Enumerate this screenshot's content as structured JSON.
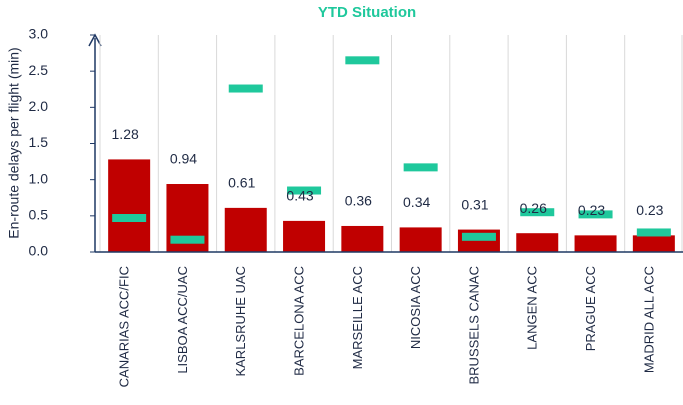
{
  "chart_data": {
    "type": "bar",
    "title": "YTD Situation",
    "ylabel": "En-route delays per flight (min)",
    "categories": [
      "CANARIAS ACC/FIC",
      "LISBOA ACC/UAC",
      "KARLSRUHE UAC",
      "BARCELONA ACC",
      "MARSEILLE ACC",
      "NICOSIA ACC",
      "BRUSSELS CANAC",
      "LANGEN ACC",
      "PRAGUE ACC",
      "MADRID ALL ACC"
    ],
    "series": [
      {
        "color": "#c00000",
        "marker": "bar",
        "data_labels": true,
        "values": [
          1.28,
          0.94,
          0.61,
          0.43,
          0.36,
          0.34,
          0.31,
          0.26,
          0.23,
          0.23
        ]
      },
      {
        "color": "#1fc89c",
        "marker": "dash",
        "values": [
          0.47,
          0.17,
          2.26,
          0.85,
          2.65,
          1.17,
          0.21,
          0.55,
          0.52,
          0.27
        ]
      }
    ],
    "ylim": [
      0,
      3
    ],
    "yticks": [
      {
        "value": 0,
        "label": "0.0"
      },
      0.5,
      {
        "value": 1,
        "label": "1.0"
      },
      1.5,
      {
        "value": 2,
        "label": "2.0"
      },
      2.5,
      {
        "value": 3,
        "label": "3.0"
      }
    ],
    "grid": "x"
  }
}
